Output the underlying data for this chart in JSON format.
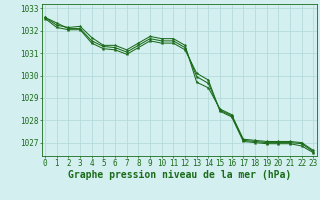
{
  "title": "Graphe pression niveau de la mer (hPa)",
  "xlabel_hours": [
    0,
    1,
    2,
    3,
    4,
    5,
    6,
    7,
    8,
    9,
    10,
    11,
    12,
    13,
    14,
    15,
    16,
    17,
    18,
    19,
    20,
    21,
    22,
    23
  ],
  "series": [
    [
      1032.6,
      1032.35,
      1032.1,
      1032.1,
      1031.55,
      1031.3,
      1031.25,
      1031.05,
      1031.35,
      1031.65,
      1031.55,
      1031.55,
      1031.25,
      1029.95,
      1029.65,
      1028.45,
      1028.2,
      1027.1,
      1027.05,
      1027.0,
      1027.0,
      1027.0,
      1026.95,
      1026.6
    ],
    [
      1032.6,
      1032.25,
      1032.15,
      1032.2,
      1031.7,
      1031.35,
      1031.35,
      1031.15,
      1031.45,
      1031.75,
      1031.65,
      1031.65,
      1031.35,
      1029.7,
      1029.45,
      1028.5,
      1028.25,
      1027.15,
      1027.1,
      1027.05,
      1027.05,
      1027.05,
      1027.0,
      1026.65
    ],
    [
      1032.55,
      1032.15,
      1032.05,
      1032.05,
      1031.45,
      1031.2,
      1031.15,
      1030.95,
      1031.25,
      1031.55,
      1031.45,
      1031.45,
      1031.15,
      1030.1,
      1029.8,
      1028.4,
      1028.15,
      1027.05,
      1027.0,
      1026.95,
      1026.95,
      1026.95,
      1026.85,
      1026.55
    ]
  ],
  "line_color": "#1a6b1a",
  "bg_color": "#d4efef",
  "grid_color": "#b0d8d8",
  "axis_color": "#1a6b1a",
  "text_color": "#1a6b1a",
  "ylim_min": 1026.4,
  "ylim_max": 1033.2,
  "yticks": [
    1027,
    1028,
    1029,
    1030,
    1031,
    1032,
    1033
  ],
  "title_fontsize": 7.0,
  "tick_fontsize": 5.5
}
